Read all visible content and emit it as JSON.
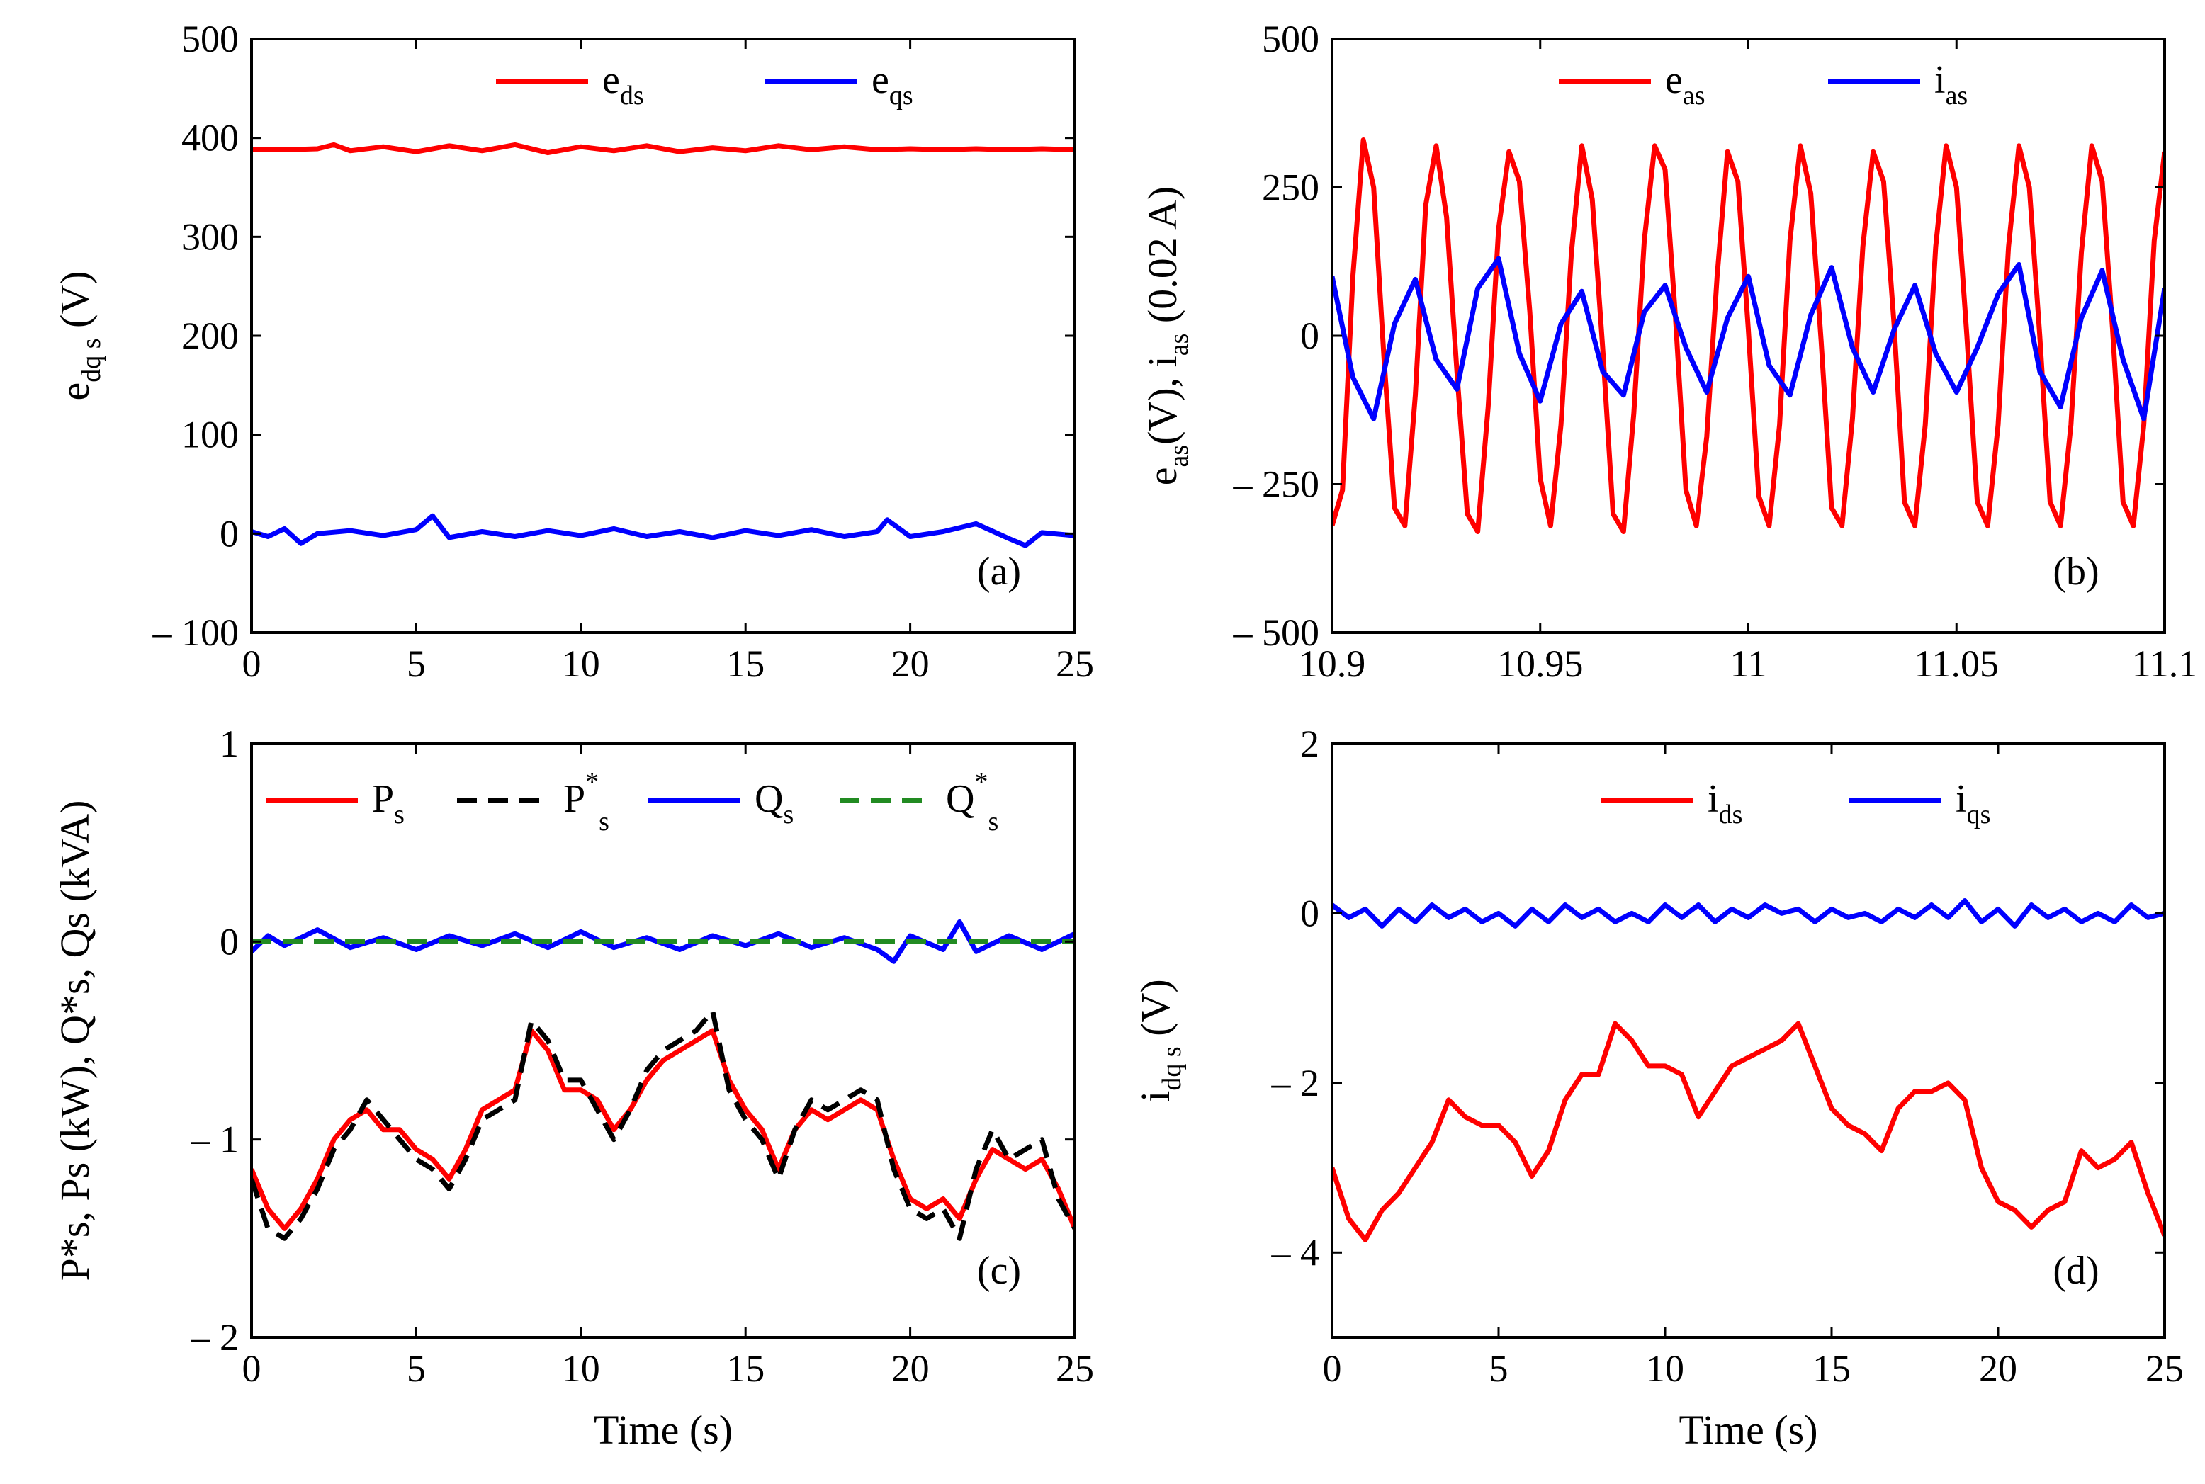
{
  "chart_data": [
    {
      "id": "a",
      "type": "line",
      "panel_label": "(a)",
      "ylabel": {
        "base": "e",
        "sub": "dq s",
        "rest": " (V)"
      },
      "xlabel": "",
      "xlim": [
        0,
        25
      ],
      "ylim": [
        -100,
        500
      ],
      "xticks": [
        0,
        5,
        10,
        15,
        20,
        25
      ],
      "xtick_labels": [
        "0",
        "5",
        "10",
        "15",
        "20",
        "25"
      ],
      "yticks": [
        -100,
        0,
        100,
        200,
        300,
        400,
        500
      ],
      "ytick_labels": [
        "– 100",
        "0",
        "100",
        "200",
        "300",
        "400",
        "500"
      ],
      "legend": [
        {
          "base": "e",
          "sub": "ds"
        },
        {
          "base": "e",
          "sub": "qs"
        }
      ],
      "series": [
        {
          "name": "e_ds",
          "color": "#ff0000",
          "dash": "",
          "x": [
            0,
            1,
            2,
            2.5,
            3,
            4,
            5,
            6,
            7,
            8,
            9,
            10,
            11,
            12,
            13,
            14,
            15,
            16,
            17,
            18,
            19,
            20,
            21,
            22,
            23,
            24,
            25
          ],
          "y": [
            388,
            388,
            389,
            393,
            387,
            391,
            386,
            392,
            387,
            393,
            385,
            391,
            387,
            392,
            386,
            390,
            387,
            392,
            388,
            391,
            388,
            389,
            388,
            389,
            388,
            389,
            388
          ]
        },
        {
          "name": "e_qs",
          "color": "#0000ff",
          "dash": "",
          "x": [
            0,
            0.5,
            1,
            1.5,
            2,
            3,
            4,
            5,
            5.5,
            6,
            7,
            8,
            9,
            10,
            11,
            12,
            13,
            14,
            15,
            16,
            17,
            18,
            19,
            19.3,
            20,
            21,
            22,
            23,
            23.5,
            24,
            25
          ],
          "y": [
            2,
            -3,
            5,
            -10,
            0,
            3,
            -2,
            4,
            18,
            -4,
            2,
            -3,
            3,
            -2,
            5,
            -3,
            2,
            -4,
            3,
            -2,
            4,
            -3,
            2,
            14,
            -3,
            2,
            10,
            -5,
            -12,
            1,
            -2
          ]
        }
      ]
    },
    {
      "id": "b",
      "type": "line",
      "panel_label": "(b)",
      "ylabel": {
        "base": "e",
        "sub": "as",
        "mid": "(V), i",
        "sub2": "as",
        "rest": " (0.02 A)"
      },
      "xlabel": "",
      "xlim": [
        10.9,
        11.1
      ],
      "ylim": [
        -500,
        500
      ],
      "xticks": [
        10.9,
        10.95,
        11,
        11.05,
        11.1
      ],
      "xtick_labels": [
        "10.9",
        "10.95",
        "11",
        "11.05",
        "11.1"
      ],
      "yticks": [
        -500,
        -250,
        0,
        250,
        500
      ],
      "ytick_labels": [
        "– 500",
        "– 250",
        "0",
        "250",
        "500"
      ],
      "legend": [
        {
          "base": "e",
          "sub": "as"
        },
        {
          "base": "i",
          "sub": "as"
        }
      ],
      "series": [
        {
          "name": "e_as",
          "color": "#ff0000",
          "dash": "",
          "x": [
            10.9,
            10.9025,
            10.905,
            10.9075,
            10.91,
            10.9125,
            10.915,
            10.9175,
            10.92,
            10.9225,
            10.925,
            10.9275,
            10.93,
            10.9325,
            10.935,
            10.9375,
            10.94,
            10.9425,
            10.945,
            10.9475,
            10.95,
            10.9525,
            10.955,
            10.9575,
            10.96,
            10.9625,
            10.965,
            10.9675,
            10.97,
            10.9725,
            10.975,
            10.9775,
            10.98,
            10.9825,
            10.985,
            10.9875,
            10.99,
            10.9925,
            10.995,
            10.9975,
            11.0,
            11.0025,
            11.005,
            11.0075,
            11.01,
            11.0125,
            11.015,
            11.0175,
            11.02,
            11.0225,
            11.025,
            11.0275,
            11.03,
            11.0325,
            11.035,
            11.0375,
            11.04,
            11.0425,
            11.045,
            11.0475,
            11.05,
            11.0525,
            11.055,
            11.0575,
            11.06,
            11.0625,
            11.065,
            11.0675,
            11.07,
            11.0725,
            11.075,
            11.0775,
            11.08,
            11.0825,
            11.085,
            11.0875,
            11.09,
            11.0925,
            11.095,
            11.0975,
            11.1
          ],
          "y": [
            -320,
            -260,
            100,
            330,
            250,
            -40,
            -290,
            -320,
            -100,
            220,
            320,
            200,
            -60,
            -300,
            -330,
            -120,
            180,
            310,
            260,
            40,
            -240,
            -320,
            -150,
            140,
            320,
            230,
            -20,
            -300,
            -330,
            -130,
            160,
            320,
            280,
            30,
            -260,
            -320,
            -170,
            100,
            310,
            260,
            10,
            -270,
            -320,
            -150,
            160,
            320,
            240,
            -10,
            -290,
            -320,
            -140,
            150,
            310,
            260,
            20,
            -280,
            -320,
            -150,
            150,
            320,
            250,
            0,
            -280,
            -320,
            -150,
            150,
            320,
            250,
            0,
            -280,
            -320,
            -150,
            140,
            320,
            260,
            10,
            -280,
            -320,
            -150,
            160,
            310
          ]
        },
        {
          "name": "i_as",
          "color": "#0000ff",
          "dash": "",
          "x": [
            10.9,
            10.905,
            10.91,
            10.915,
            10.92,
            10.925,
            10.93,
            10.935,
            10.94,
            10.945,
            10.95,
            10.955,
            10.96,
            10.965,
            10.97,
            10.975,
            10.98,
            10.985,
            10.99,
            10.995,
            11.0,
            11.005,
            11.01,
            11.015,
            11.02,
            11.025,
            11.03,
            11.035,
            11.04,
            11.045,
            11.05,
            11.055,
            11.06,
            11.065,
            11.07,
            11.075,
            11.08,
            11.085,
            11.09,
            11.095,
            11.1
          ],
          "y": [
            100,
            -70,
            -140,
            20,
            95,
            -40,
            -90,
            80,
            130,
            -30,
            -110,
            20,
            75,
            -60,
            -100,
            40,
            85,
            -20,
            -95,
            30,
            100,
            -50,
            -100,
            35,
            115,
            -20,
            -95,
            10,
            85,
            -30,
            -95,
            -20,
            70,
            120,
            -60,
            -120,
            30,
            110,
            -40,
            -140,
            80
          ]
        }
      ]
    },
    {
      "id": "c",
      "type": "line",
      "panel_label": "(c)",
      "ylabel": {
        "text": "P*s, Ps (kW), Q*s, Qs (kVA)"
      },
      "xlabel": "Time (s)",
      "xlim": [
        0,
        25
      ],
      "ylim": [
        -2,
        1
      ],
      "xticks": [
        0,
        5,
        10,
        15,
        20,
        25
      ],
      "xtick_labels": [
        "0",
        "5",
        "10",
        "15",
        "20",
        "25"
      ],
      "yticks": [
        -2,
        -1,
        0,
        1
      ],
      "ytick_labels": [
        "– 2",
        "– 1",
        "0",
        "1"
      ],
      "legend": [
        {
          "base": "P",
          "sub": "s",
          "sup": ""
        },
        {
          "base": "P",
          "sub": "s",
          "sup": "*"
        },
        {
          "base": "Q",
          "sub": "s",
          "sup": ""
        },
        {
          "base": "Q",
          "sub": "s",
          "sup": "*"
        }
      ],
      "series": [
        {
          "name": "P_s",
          "color": "#ff0000",
          "dash": "",
          "x": [
            0,
            0.5,
            1,
            1.5,
            2,
            2.5,
            3,
            3.5,
            4,
            4.5,
            5,
            5.5,
            6,
            6.5,
            7,
            7.5,
            8,
            8.5,
            9,
            9.5,
            10,
            10.5,
            11,
            11.5,
            12,
            12.5,
            13,
            13.5,
            14,
            14.5,
            15,
            15.5,
            16,
            16.5,
            17,
            17.5,
            18,
            18.5,
            19,
            19.5,
            20,
            20.5,
            21,
            21.5,
            22,
            22.5,
            23,
            23.5,
            24,
            24.5,
            25
          ],
          "y": [
            -1.15,
            -1.35,
            -1.45,
            -1.35,
            -1.2,
            -1.0,
            -0.9,
            -0.85,
            -0.95,
            -0.95,
            -1.05,
            -1.1,
            -1.2,
            -1.05,
            -0.85,
            -0.8,
            -0.75,
            -0.45,
            -0.55,
            -0.75,
            -0.75,
            -0.8,
            -0.95,
            -0.85,
            -0.7,
            -0.6,
            -0.55,
            -0.5,
            -0.45,
            -0.7,
            -0.85,
            -0.95,
            -1.15,
            -0.95,
            -0.85,
            -0.9,
            -0.85,
            -0.8,
            -0.85,
            -1.1,
            -1.3,
            -1.35,
            -1.3,
            -1.4,
            -1.2,
            -1.05,
            -1.1,
            -1.15,
            -1.1,
            -1.25,
            -1.45
          ]
        },
        {
          "name": "P_s*",
          "color": "#000000",
          "dash": "28,16",
          "x": [
            0,
            0.5,
            1,
            1.5,
            2,
            2.5,
            3,
            3.5,
            4,
            4.5,
            5,
            5.5,
            6,
            6.5,
            7,
            7.5,
            8,
            8.5,
            9,
            9.5,
            10,
            10.5,
            11,
            11.5,
            12,
            12.5,
            13,
            13.5,
            14,
            14.5,
            15,
            15.5,
            16,
            16.5,
            17,
            17.5,
            18,
            18.5,
            19,
            19.5,
            20,
            20.5,
            21,
            21.5,
            22,
            22.5,
            23,
            23.5,
            24,
            24.5,
            25
          ],
          "y": [
            -1.2,
            -1.45,
            -1.5,
            -1.4,
            -1.25,
            -1.05,
            -0.95,
            -0.8,
            -0.9,
            -1.0,
            -1.1,
            -1.15,
            -1.25,
            -1.1,
            -0.9,
            -0.85,
            -0.8,
            -0.4,
            -0.5,
            -0.7,
            -0.7,
            -0.85,
            -1.0,
            -0.85,
            -0.65,
            -0.55,
            -0.5,
            -0.45,
            -0.35,
            -0.75,
            -0.9,
            -1.0,
            -1.2,
            -0.95,
            -0.8,
            -0.85,
            -0.8,
            -0.75,
            -0.8,
            -1.15,
            -1.35,
            -1.4,
            -1.35,
            -1.5,
            -1.15,
            -0.95,
            -1.1,
            -1.05,
            -1.0,
            -1.3,
            -1.45
          ]
        },
        {
          "name": "Q_s",
          "color": "#0000ff",
          "dash": "",
          "x": [
            0,
            0.5,
            1,
            2,
            3,
            4,
            5,
            6,
            7,
            8,
            9,
            10,
            11,
            12,
            13,
            14,
            15,
            16,
            17,
            18,
            19,
            19.5,
            20,
            21,
            21.5,
            22,
            23,
            24,
            25
          ],
          "y": [
            -0.05,
            0.03,
            -0.02,
            0.06,
            -0.03,
            0.02,
            -0.04,
            0.03,
            -0.02,
            0.04,
            -0.03,
            0.05,
            -0.03,
            0.02,
            -0.04,
            0.03,
            -0.02,
            0.04,
            -0.03,
            0.02,
            -0.04,
            -0.1,
            0.03,
            -0.04,
            0.1,
            -0.05,
            0.03,
            -0.04,
            0.04
          ]
        },
        {
          "name": "Q_s*",
          "color": "#228b22",
          "dash": "28,16",
          "x": [
            0,
            25
          ],
          "y": [
            0,
            0
          ]
        }
      ]
    },
    {
      "id": "d",
      "type": "line",
      "panel_label": "(d)",
      "ylabel": {
        "base": "i",
        "sub": "dq s",
        "rest": " (V)"
      },
      "xlabel": "Time (s)",
      "xlim": [
        0,
        25
      ],
      "ylim": [
        -5,
        2
      ],
      "xticks": [
        0,
        5,
        10,
        15,
        20,
        25
      ],
      "xtick_labels": [
        "0",
        "5",
        "10",
        "15",
        "20",
        "25"
      ],
      "yticks": [
        -4,
        -2,
        0,
        2
      ],
      "ytick_labels": [
        "– 4",
        "– 2",
        "0",
        "2"
      ],
      "legend": [
        {
          "base": "i",
          "sub": "ds"
        },
        {
          "base": "i",
          "sub": "qs"
        }
      ],
      "series": [
        {
          "name": "i_ds",
          "color": "#ff0000",
          "dash": "",
          "x": [
            0,
            0.5,
            1,
            1.5,
            2,
            2.5,
            3,
            3.5,
            4,
            4.5,
            5,
            5.5,
            6,
            6.5,
            7,
            7.5,
            8,
            8.5,
            9,
            9.5,
            10,
            10.5,
            11,
            11.5,
            12,
            12.5,
            13,
            13.5,
            14,
            14.5,
            15,
            15.5,
            16,
            16.5,
            17,
            17.5,
            18,
            18.5,
            19,
            19.5,
            20,
            20.5,
            21,
            21.5,
            22,
            22.5,
            23,
            23.5,
            24,
            24.5,
            25
          ],
          "y": [
            -3.0,
            -3.6,
            -3.85,
            -3.5,
            -3.3,
            -3.0,
            -2.7,
            -2.2,
            -2.4,
            -2.5,
            -2.5,
            -2.7,
            -3.1,
            -2.8,
            -2.2,
            -1.9,
            -1.9,
            -1.3,
            -1.5,
            -1.8,
            -1.8,
            -1.9,
            -2.4,
            -2.1,
            -1.8,
            -1.7,
            -1.6,
            -1.5,
            -1.3,
            -1.8,
            -2.3,
            -2.5,
            -2.6,
            -2.8,
            -2.3,
            -2.1,
            -2.1,
            -2.0,
            -2.2,
            -3.0,
            -3.4,
            -3.5,
            -3.7,
            -3.5,
            -3.4,
            -2.8,
            -3.0,
            -2.9,
            -2.7,
            -3.3,
            -3.8
          ]
        },
        {
          "name": "i_qs",
          "color": "#0000ff",
          "dash": "",
          "x": [
            0,
            0.5,
            1,
            1.5,
            2,
            2.5,
            3,
            3.5,
            4,
            4.5,
            5,
            5.5,
            6,
            6.5,
            7,
            7.5,
            8,
            8.5,
            9,
            9.5,
            10,
            10.5,
            11,
            11.5,
            12,
            12.5,
            13,
            13.5,
            14,
            14.5,
            15,
            15.5,
            16,
            16.5,
            17,
            17.5,
            18,
            18.5,
            19,
            19.5,
            20,
            20.5,
            21,
            21.5,
            22,
            22.5,
            23,
            23.5,
            24,
            24.5,
            25
          ],
          "y": [
            0.1,
            -0.05,
            0.05,
            -0.15,
            0.05,
            -0.1,
            0.1,
            -0.05,
            0.05,
            -0.1,
            0.0,
            -0.15,
            0.05,
            -0.1,
            0.1,
            -0.05,
            0.05,
            -0.1,
            0.0,
            -0.1,
            0.1,
            -0.05,
            0.1,
            -0.1,
            0.05,
            -0.05,
            0.1,
            0.0,
            0.05,
            -0.1,
            0.05,
            -0.05,
            0.0,
            -0.1,
            0.05,
            -0.05,
            0.1,
            -0.05,
            0.15,
            -0.1,
            0.05,
            -0.15,
            0.1,
            -0.05,
            0.05,
            -0.1,
            0.0,
            -0.1,
            0.1,
            -0.05,
            0.0
          ]
        }
      ]
    }
  ]
}
